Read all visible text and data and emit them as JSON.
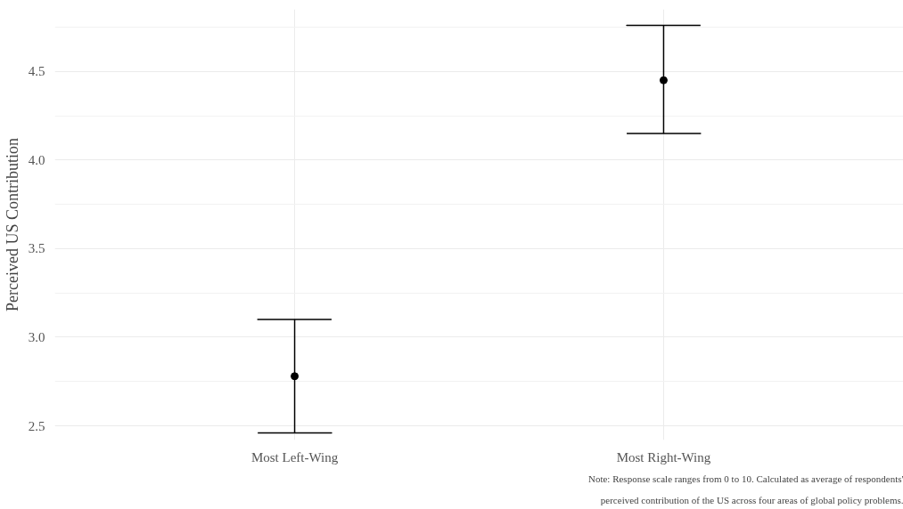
{
  "chart_data": {
    "type": "scatter",
    "ylabel": "Perceived US Contribution",
    "categories": [
      "Most Left-Wing",
      "Most Right-Wing"
    ],
    "values": [
      2.78,
      4.45
    ],
    "color": "#000000",
    "errors": [
      [
        2.46,
        3.1
      ],
      [
        4.15,
        4.76
      ]
    ],
    "ylim": [
      2.42,
      4.85
    ],
    "yticks": [
      2.5,
      {
        "value": 3,
        "label": "3.0"
      },
      3.5,
      {
        "value": 4,
        "label": "4.0"
      },
      4.5
    ],
    "grid": true,
    "marker": "circle",
    "annotations": [
      "Note: Response scale ranges from 0 to 10. Calculated as average of respondents'",
      "perceived contribution of the US across four areas of global policy problems."
    ]
  }
}
